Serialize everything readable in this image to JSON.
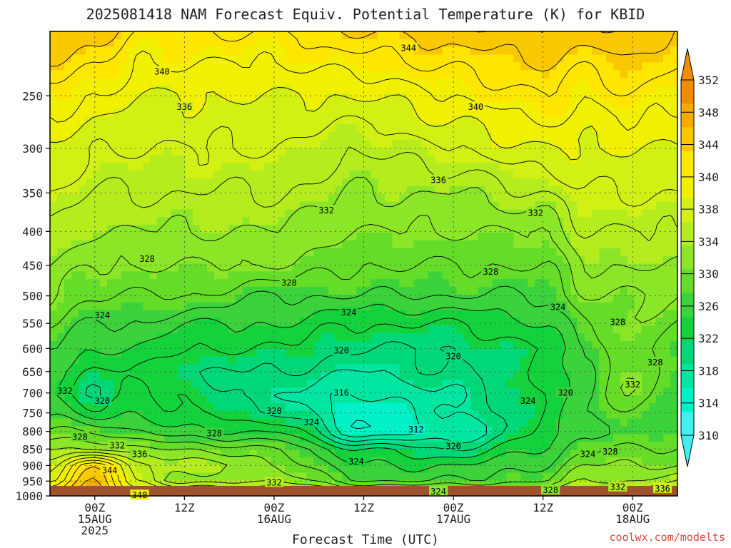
{
  "title": "2025081418 NAM Forecast Equiv. Potential Temperature (K) for KBID",
  "credit": "coolwx.com/modelts",
  "chart_data": {
    "type": "heatmap",
    "title": "2025081418 NAM Forecast Equiv. Potential Temperature (K) for KBID",
    "xlabel": "Forecast Time (UTC)",
    "ylabel": "",
    "units": "K",
    "y_axis": {
      "scale": "log",
      "direction": "pressure decreasing upward",
      "range_hPa": [
        1000,
        200
      ],
      "ticks": [
        250,
        300,
        350,
        400,
        450,
        500,
        550,
        600,
        650,
        700,
        750,
        800,
        850,
        900,
        950,
        1000
      ]
    },
    "x_axis": {
      "range_hours": [
        -6,
        78
      ],
      "ticks": [
        {
          "hour": 0,
          "line1": "00Z",
          "line2": "15AUG",
          "line3": "2025"
        },
        {
          "hour": 12,
          "line1": "12Z",
          "line2": "",
          "line3": ""
        },
        {
          "hour": 24,
          "line1": "00Z",
          "line2": "16AUG",
          "line3": ""
        },
        {
          "hour": 36,
          "line1": "12Z",
          "line2": "",
          "line3": ""
        },
        {
          "hour": 48,
          "line1": "00Z",
          "line2": "17AUG",
          "line3": ""
        },
        {
          "hour": 60,
          "line1": "12Z",
          "line2": "",
          "line3": ""
        },
        {
          "hour": 72,
          "line1": "00Z",
          "line2": "18AUG",
          "line3": ""
        }
      ]
    },
    "colorbar": {
      "levels": [
        310,
        312,
        314,
        316,
        318,
        320,
        322,
        324,
        326,
        328,
        330,
        332,
        334,
        336,
        338,
        340,
        342,
        344,
        346,
        348,
        350,
        352
      ],
      "tick_labels": [
        "310",
        "314",
        "318",
        "322",
        "326",
        "330",
        "334",
        "338",
        "340",
        "344",
        "348",
        "352"
      ],
      "colors": [
        "#40f0f0",
        "#00f0c8",
        "#00e6a0",
        "#00d878",
        "#14d23c",
        "#3cd23c",
        "#64dc28",
        "#8ce628",
        "#b4ec1e",
        "#d2f014",
        "#f0f000",
        "#ffe600",
        "#fac800",
        "#f5aa00",
        "#f08c00"
      ]
    },
    "legend_placement": "right",
    "grid": true,
    "ground_color": "#a0522d",
    "contour_interval_K": 2,
    "profiles": [
      {
        "hour": -6,
        "p": [
          1000,
          950,
          900,
          850,
          800,
          750,
          700,
          650,
          600,
          550,
          500,
          450,
          400,
          350,
          300,
          250,
          200
        ],
        "theta_e": [
          344,
          338,
          336,
          332,
          328,
          326,
          324,
          324,
          326,
          328,
          330,
          332,
          334,
          336,
          338,
          341,
          346
        ]
      },
      {
        "hour": 0,
        "p": [
          1000,
          950,
          900,
          850,
          800,
          750,
          700,
          650,
          600,
          550,
          500,
          450,
          400,
          350,
          300,
          250,
          200
        ],
        "theta_e": [
          348,
          346,
          344,
          332,
          328,
          322,
          320,
          322,
          324,
          326,
          328,
          330,
          332,
          334,
          336,
          340,
          345
        ]
      },
      {
        "hour": 6,
        "p": [
          1000,
          950,
          900,
          850,
          800,
          750,
          700,
          650,
          600,
          550,
          500,
          450,
          400,
          350,
          300,
          250,
          200
        ],
        "theta_e": [
          340,
          336,
          334,
          330,
          326,
          324,
          322,
          322,
          324,
          326,
          328,
          330,
          332,
          334,
          336,
          338,
          342
        ]
      },
      {
        "hour": 12,
        "p": [
          1000,
          950,
          900,
          850,
          800,
          750,
          700,
          650,
          600,
          550,
          500,
          450,
          400,
          350,
          300,
          250,
          200
        ],
        "theta_e": [
          340,
          330,
          334,
          330,
          324,
          322,
          322,
          320,
          322,
          324,
          328,
          330,
          332,
          334,
          336,
          338,
          342
        ]
      },
      {
        "hour": 24,
        "p": [
          1000,
          950,
          900,
          850,
          800,
          750,
          700,
          650,
          600,
          550,
          500,
          450,
          400,
          350,
          300,
          250,
          200
        ],
        "theta_e": [
          338,
          332,
          330,
          328,
          324,
          320,
          318,
          320,
          322,
          324,
          326,
          330,
          332,
          334,
          336,
          338,
          342
        ]
      },
      {
        "hour": 36,
        "p": [
          1000,
          950,
          900,
          850,
          800,
          750,
          700,
          650,
          600,
          550,
          500,
          450,
          400,
          350,
          300,
          250,
          200
        ],
        "theta_e": [
          334,
          326,
          324,
          322,
          314,
          314,
          316,
          318,
          320,
          322,
          326,
          328,
          330,
          332,
          334,
          338,
          344
        ]
      },
      {
        "hour": 48,
        "p": [
          1000,
          950,
          900,
          850,
          800,
          750,
          700,
          650,
          600,
          550,
          500,
          450,
          400,
          350,
          300,
          250,
          200
        ],
        "theta_e": [
          334,
          326,
          324,
          320,
          316,
          318,
          318,
          320,
          320,
          322,
          326,
          328,
          330,
          332,
          336,
          340,
          345
        ]
      },
      {
        "hour": 60,
        "p": [
          1000,
          950,
          900,
          850,
          800,
          750,
          700,
          650,
          600,
          550,
          500,
          450,
          400,
          350,
          300,
          250,
          200
        ],
        "theta_e": [
          334,
          328,
          326,
          324,
          322,
          322,
          322,
          322,
          322,
          324,
          326,
          328,
          330,
          334,
          338,
          342,
          346
        ]
      },
      {
        "hour": 66,
        "p": [
          1000,
          950,
          900,
          850,
          800,
          750,
          700,
          650,
          600,
          550,
          500,
          450,
          400,
          350,
          300,
          250,
          200
        ],
        "theta_e": [
          336,
          332,
          330,
          328,
          326,
          326,
          326,
          326,
          326,
          328,
          330,
          332,
          334,
          336,
          338,
          340,
          345
        ]
      },
      {
        "hour": 72,
        "p": [
          1000,
          950,
          900,
          850,
          800,
          750,
          700,
          650,
          600,
          550,
          500,
          450,
          400,
          350,
          300,
          250,
          200
        ],
        "theta_e": [
          336,
          332,
          330,
          328,
          326,
          328,
          330,
          330,
          330,
          330,
          330,
          332,
          334,
          336,
          338,
          342,
          346
        ]
      },
      {
        "hour": 78,
        "p": [
          1000,
          950,
          900,
          850,
          800,
          750,
          700,
          650,
          600,
          550,
          500,
          450,
          400,
          350,
          300,
          250,
          200
        ],
        "theta_e": [
          338,
          334,
          330,
          328,
          326,
          326,
          326,
          326,
          326,
          328,
          330,
          332,
          334,
          336,
          338,
          340,
          344
        ]
      }
    ],
    "contour_labels": [
      {
        "text": "344",
        "hour": 42,
        "p": 212
      },
      {
        "text": "340",
        "hour": 9,
        "p": 230
      },
      {
        "text": "340",
        "hour": 51,
        "p": 260
      },
      {
        "text": "336",
        "hour": 12,
        "p": 260
      },
      {
        "text": "336",
        "hour": 46,
        "p": 335
      },
      {
        "text": "332",
        "hour": 31,
        "p": 372
      },
      {
        "text": "332",
        "hour": 59,
        "p": 375
      },
      {
        "text": "328",
        "hour": 7,
        "p": 440
      },
      {
        "text": "328",
        "hour": 26,
        "p": 478
      },
      {
        "text": "328",
        "hour": 53,
        "p": 460
      },
      {
        "text": "324",
        "hour": 34,
        "p": 530
      },
      {
        "text": "324",
        "hour": 62,
        "p": 520
      },
      {
        "text": "324",
        "hour": 1,
        "p": 535
      },
      {
        "text": "328",
        "hour": 70,
        "p": 548
      },
      {
        "text": "320",
        "hour": 33,
        "p": 605
      },
      {
        "text": "320",
        "hour": 48,
        "p": 617
      },
      {
        "text": "328",
        "hour": 75,
        "p": 630
      },
      {
        "text": "332",
        "hour": 72,
        "p": 680
      },
      {
        "text": "332",
        "hour": -4,
        "p": 695
      },
      {
        "text": "320",
        "hour": 63,
        "p": 700
      },
      {
        "text": "316",
        "hour": 33,
        "p": 700
      },
      {
        "text": "320",
        "hour": 1,
        "p": 720
      },
      {
        "text": "324",
        "hour": 58,
        "p": 720
      },
      {
        "text": "320",
        "hour": 24,
        "p": 745
      },
      {
        "text": "324",
        "hour": 29,
        "p": 775
      },
      {
        "text": "312",
        "hour": 43,
        "p": 795
      },
      {
        "text": "328",
        "hour": 16,
        "p": 805
      },
      {
        "text": "328",
        "hour": -2,
        "p": 815
      },
      {
        "text": "332",
        "hour": 3,
        "p": 840
      },
      {
        "text": "320",
        "hour": 48,
        "p": 842
      },
      {
        "text": "336",
        "hour": 6,
        "p": 865
      },
      {
        "text": "324",
        "hour": 66,
        "p": 865
      },
      {
        "text": "328",
        "hour": 69,
        "p": 858
      },
      {
        "text": "324",
        "hour": 35,
        "p": 888
      },
      {
        "text": "344",
        "hour": 2,
        "p": 916
      },
      {
        "text": "332",
        "hour": 24,
        "p": 955
      },
      {
        "text": "332",
        "hour": 70,
        "p": 970
      },
      {
        "text": "336",
        "hour": 76,
        "p": 975
      },
      {
        "text": "328",
        "hour": 61,
        "p": 980
      },
      {
        "text": "324",
        "hour": 46,
        "p": 985
      },
      {
        "text": "340",
        "hour": 6,
        "p": 998
      }
    ]
  }
}
